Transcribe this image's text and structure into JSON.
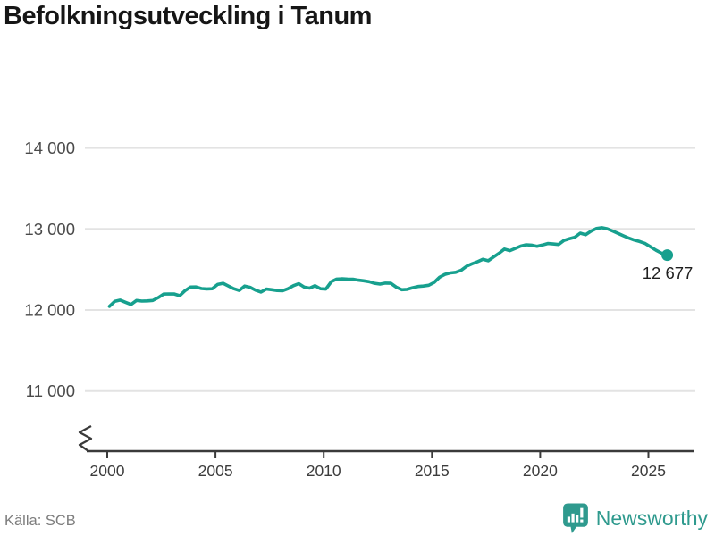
{
  "header": {
    "title": "Befolkningsutveckling i Tanum"
  },
  "chart_data": {
    "type": "line",
    "title": "Befolkningsutveckling i Tanum",
    "xlabel": "",
    "ylabel": "",
    "xlim": [
      1999.0,
      2027.1
    ],
    "ylim": [
      10250,
      14200
    ],
    "grid": true,
    "axis_break_on_y": true,
    "legend_position": "none",
    "end_label": "12 677",
    "colors": {
      "line": "#17a08e",
      "grid": "#e3e3e3",
      "axis": "#3a3a3a",
      "tick_label": "#3c3c3c",
      "y_label": "#4a4a4a",
      "end_label": "#1f1f1f"
    },
    "x_ticks": [
      {
        "value": 2000,
        "label": "2000"
      },
      {
        "value": 2005,
        "label": "2005"
      },
      {
        "value": 2010,
        "label": "2010"
      },
      {
        "value": 2015,
        "label": "2015"
      },
      {
        "value": 2020,
        "label": "2020"
      },
      {
        "value": 2025,
        "label": "2025"
      }
    ],
    "y_ticks": [
      {
        "value": 14000,
        "label": "14 000"
      },
      {
        "value": 13000,
        "label": "13 000"
      },
      {
        "value": 12000,
        "label": "12 000"
      },
      {
        "value": 11000,
        "label": "11 000"
      }
    ],
    "series": [
      {
        "points": [
          [
            2000.1,
            12045
          ],
          [
            2000.35,
            12108
          ],
          [
            2000.6,
            12122
          ],
          [
            2000.85,
            12095
          ],
          [
            2001.1,
            12068
          ],
          [
            2001.35,
            12118
          ],
          [
            2001.6,
            12110
          ],
          [
            2001.85,
            12112
          ],
          [
            2002.1,
            12118
          ],
          [
            2002.35,
            12152
          ],
          [
            2002.6,
            12196
          ],
          [
            2002.85,
            12198
          ],
          [
            2003.1,
            12197
          ],
          [
            2003.35,
            12176
          ],
          [
            2003.6,
            12240
          ],
          [
            2003.85,
            12283
          ],
          [
            2004.1,
            12285
          ],
          [
            2004.35,
            12265
          ],
          [
            2004.6,
            12260
          ],
          [
            2004.85,
            12262
          ],
          [
            2005.1,
            12315
          ],
          [
            2005.35,
            12330
          ],
          [
            2005.6,
            12295
          ],
          [
            2005.85,
            12262
          ],
          [
            2006.1,
            12242
          ],
          [
            2006.35,
            12295
          ],
          [
            2006.6,
            12280
          ],
          [
            2006.85,
            12245
          ],
          [
            2007.1,
            12222
          ],
          [
            2007.35,
            12258
          ],
          [
            2007.6,
            12250
          ],
          [
            2007.85,
            12240
          ],
          [
            2008.1,
            12238
          ],
          [
            2008.35,
            12262
          ],
          [
            2008.6,
            12300
          ],
          [
            2008.85,
            12325
          ],
          [
            2009.1,
            12282
          ],
          [
            2009.35,
            12270
          ],
          [
            2009.6,
            12300
          ],
          [
            2009.85,
            12262
          ],
          [
            2010.1,
            12258
          ],
          [
            2010.35,
            12350
          ],
          [
            2010.6,
            12382
          ],
          [
            2010.85,
            12385
          ],
          [
            2011.1,
            12382
          ],
          [
            2011.35,
            12380
          ],
          [
            2011.6,
            12368
          ],
          [
            2011.85,
            12360
          ],
          [
            2012.1,
            12350
          ],
          [
            2012.35,
            12330
          ],
          [
            2012.6,
            12320
          ],
          [
            2012.85,
            12332
          ],
          [
            2013.1,
            12330
          ],
          [
            2013.35,
            12282
          ],
          [
            2013.6,
            12250
          ],
          [
            2013.85,
            12255
          ],
          [
            2014.1,
            12275
          ],
          [
            2014.35,
            12290
          ],
          [
            2014.6,
            12295
          ],
          [
            2014.85,
            12305
          ],
          [
            2015.1,
            12340
          ],
          [
            2015.35,
            12405
          ],
          [
            2015.6,
            12440
          ],
          [
            2015.85,
            12458
          ],
          [
            2016.1,
            12465
          ],
          [
            2016.35,
            12490
          ],
          [
            2016.6,
            12540
          ],
          [
            2016.85,
            12570
          ],
          [
            2017.1,
            12595
          ],
          [
            2017.35,
            12625
          ],
          [
            2017.6,
            12607
          ],
          [
            2017.85,
            12655
          ],
          [
            2018.1,
            12700
          ],
          [
            2018.35,
            12752
          ],
          [
            2018.6,
            12732
          ],
          [
            2018.85,
            12760
          ],
          [
            2019.1,
            12788
          ],
          [
            2019.35,
            12805
          ],
          [
            2019.6,
            12800
          ],
          [
            2019.85,
            12786
          ],
          [
            2020.1,
            12802
          ],
          [
            2020.35,
            12820
          ],
          [
            2020.6,
            12815
          ],
          [
            2020.85,
            12808
          ],
          [
            2021.1,
            12858
          ],
          [
            2021.35,
            12880
          ],
          [
            2021.6,
            12898
          ],
          [
            2021.85,
            12948
          ],
          [
            2022.1,
            12928
          ],
          [
            2022.35,
            12972
          ],
          [
            2022.6,
            13005
          ],
          [
            2022.85,
            13015
          ],
          [
            2023.1,
            13002
          ],
          [
            2023.35,
            12975
          ],
          [
            2023.6,
            12945
          ],
          [
            2023.85,
            12915
          ],
          [
            2024.1,
            12886
          ],
          [
            2024.35,
            12862
          ],
          [
            2024.6,
            12845
          ],
          [
            2024.85,
            12820
          ],
          [
            2025.1,
            12780
          ],
          [
            2025.35,
            12738
          ],
          [
            2025.6,
            12702
          ],
          [
            2025.87,
            12677
          ]
        ]
      }
    ]
  },
  "footer": {
    "source": "Källa: SCB",
    "brand": "Newsworthy",
    "brand_color": "#2f9a8e"
  }
}
